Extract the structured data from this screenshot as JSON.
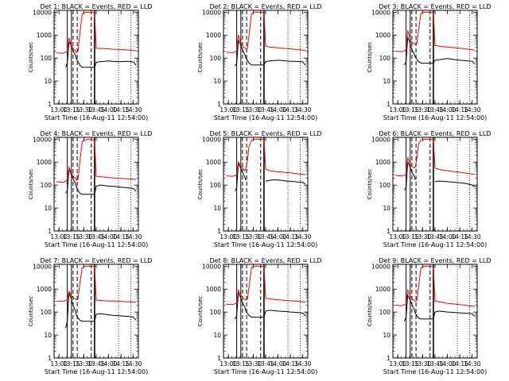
{
  "x_tick_labels": [
    "13:00",
    "13:15",
    "13:30",
    "13:45",
    "14:00",
    "14:15",
    "14:30"
  ],
  "xlabel": "Start Time (16-Aug-11 12:54:00)",
  "ylabel": "Counts/sec",
  "y_tick_labels": [
    "1",
    "10",
    "100",
    "1000",
    "10000"
  ],
  "colors": {
    "events": "#000000",
    "lld": "#ff0000",
    "axes": "#000000"
  },
  "chart_data": [
    {
      "type": "line",
      "title": "Det 1: BLACK = Events, RED = LLD",
      "x_range": [
        "12:54",
        "14:36"
      ],
      "y_range": [
        1,
        12000
      ],
      "y_scale": "log",
      "x": [
        "12:57",
        "13:05",
        "13:08",
        "13:10",
        "13:12",
        "13:14",
        "13:16",
        "13:18",
        "13:20",
        "13:21",
        "13:23",
        "13:25",
        "13:28",
        "13:30",
        "13:33",
        "13:36",
        "13:38",
        "13:40",
        "13:43",
        "13:45",
        "13:50",
        "13:55",
        "14:00",
        "14:05",
        "14:10",
        "14:15",
        "14:20",
        "14:25",
        "14:30",
        "14:33"
      ],
      "series": [
        {
          "name": "Events",
          "values": [
            null,
            null,
            40,
            60,
            500,
            400,
            250,
            180,
            130,
            90,
            70,
            50,
            40,
            40,
            40,
            40,
            40,
            40,
            40,
            65,
            70,
            72,
            75,
            72,
            70,
            70,
            72,
            70,
            68,
            50
          ]
        },
        {
          "name": "LLD",
          "values": [
            170,
            160,
            180,
            200,
            750,
            450,
            300,
            230,
            210,
            170,
            200,
            1000,
            8000,
            9500,
            9800,
            9900,
            9950,
            9800,
            9000,
            270,
            260,
            260,
            250,
            240,
            240,
            235,
            230,
            220,
            210,
            210
          ]
        }
      ]
    },
    {
      "type": "line",
      "title": "Det 2: BLACK = Events, RED = LLD",
      "x_range": [
        "12:54",
        "14:36"
      ],
      "y_range": [
        1,
        12000
      ],
      "y_scale": "log",
      "x": [
        "12:57",
        "13:05",
        "13:08",
        "13:10",
        "13:12",
        "13:14",
        "13:16",
        "13:18",
        "13:20",
        "13:21",
        "13:23",
        "13:25",
        "13:28",
        "13:30",
        "13:33",
        "13:36",
        "13:38",
        "13:40",
        "13:43",
        "13:45",
        "13:50",
        "13:55",
        "14:00",
        "14:05",
        "14:10",
        "14:15",
        "14:20",
        "14:25",
        "14:30",
        "14:33"
      ],
      "series": [
        {
          "name": "Events",
          "values": [
            null,
            null,
            45,
            60,
            600,
            450,
            280,
            190,
            140,
            100,
            80,
            60,
            50,
            50,
            50,
            50,
            50,
            50,
            50,
            70,
            75,
            78,
            80,
            78,
            75,
            72,
            72,
            70,
            68,
            50
          ]
        },
        {
          "name": "LLD",
          "values": [
            180,
            170,
            190,
            210,
            1000,
            600,
            380,
            300,
            280,
            250,
            260,
            1100,
            8500,
            9600,
            9900,
            9950,
            9950,
            9850,
            9200,
            320,
            300,
            290,
            280,
            270,
            260,
            250,
            240,
            230,
            220,
            215
          ]
        }
      ]
    },
    {
      "type": "line",
      "title": "Det 3: BLACK = Events, RED = LLD",
      "x_range": [
        "12:54",
        "14:36"
      ],
      "y_range": [
        1,
        12000
      ],
      "y_scale": "log",
      "x": [
        "12:57",
        "13:05",
        "13:08",
        "13:10",
        "13:12",
        "13:14",
        "13:16",
        "13:18",
        "13:20",
        "13:21",
        "13:23",
        "13:25",
        "13:28",
        "13:30",
        "13:33",
        "13:36",
        "13:38",
        "13:40",
        "13:43",
        "13:45",
        "13:50",
        "13:55",
        "14:00",
        "14:05",
        "14:10",
        "14:15",
        "14:20",
        "14:25",
        "14:30",
        "14:33"
      ],
      "series": [
        {
          "name": "Events",
          "values": [
            null,
            null,
            50,
            70,
            800,
            550,
            300,
            200,
            150,
            110,
            90,
            70,
            60,
            60,
            60,
            60,
            60,
            60,
            60,
            80,
            85,
            90,
            95,
            90,
            85,
            80,
            78,
            75,
            72,
            55
          ]
        },
        {
          "name": "LLD",
          "values": [
            200,
            190,
            210,
            230,
            1600,
            900,
            550,
            450,
            420,
            400,
            430,
            1500,
            9000,
            9700,
            9900,
            9950,
            9950,
            9900,
            9400,
            350,
            330,
            310,
            300,
            290,
            280,
            270,
            255,
            240,
            230,
            220
          ]
        }
      ]
    },
    {
      "type": "line",
      "title": "Det 4: BLACK = Events, RED = LLD",
      "x_range": [
        "12:54",
        "14:36"
      ],
      "y_range": [
        1,
        12000
      ],
      "y_scale": "log",
      "x": [
        "12:57",
        "13:05",
        "13:08",
        "13:10",
        "13:12",
        "13:14",
        "13:16",
        "13:18",
        "13:20",
        "13:21",
        "13:23",
        "13:25",
        "13:28",
        "13:30",
        "13:33",
        "13:36",
        "13:38",
        "13:40",
        "13:43",
        "13:45",
        "13:50",
        "13:55",
        "14:00",
        "14:05",
        "14:10",
        "14:15",
        "14:20",
        "14:25",
        "14:30",
        "14:33"
      ],
      "series": [
        {
          "name": "Events",
          "values": [
            null,
            null,
            45,
            55,
            450,
            350,
            220,
            160,
            120,
            80,
            60,
            45,
            40,
            40,
            40,
            40,
            40,
            40,
            40,
            90,
            100,
            95,
            90,
            88,
            85,
            80,
            78,
            75,
            70,
            55
          ]
        },
        {
          "name": "LLD",
          "values": [
            140,
            130,
            150,
            170,
            600,
            420,
            300,
            220,
            200,
            160,
            180,
            900,
            7500,
            9000,
            9500,
            9600,
            9700,
            9500,
            8800,
            240,
            230,
            220,
            210,
            205,
            200,
            195,
            190,
            185,
            180,
            175
          ]
        }
      ]
    },
    {
      "type": "line",
      "title": "Det 5: BLACK = Events, RED = LLD",
      "x_range": [
        "12:54",
        "14:36"
      ],
      "y_range": [
        1,
        12000
      ],
      "y_scale": "log",
      "x": [
        "12:57",
        "13:05",
        "13:08",
        "13:10",
        "13:12",
        "13:14",
        "13:16",
        "13:18",
        "13:20",
        "13:21",
        "13:23",
        "13:25",
        "13:28",
        "13:30",
        "13:33",
        "13:36",
        "13:38",
        "13:40",
        "13:43",
        "13:45",
        "13:50",
        "13:55",
        "14:00",
        "14:05",
        "14:10",
        "14:15",
        "14:20",
        "14:25",
        "14:30",
        "14:33"
      ],
      "series": [
        {
          "name": "Events",
          "values": [
            null,
            null,
            55,
            75,
            900,
            650,
            420,
            300,
            220,
            160,
            null,
            null,
            null,
            null,
            null,
            null,
            null,
            null,
            null,
            150,
            160,
            170,
            165,
            160,
            150,
            145,
            140,
            135,
            130,
            110
          ]
        },
        {
          "name": "LLD",
          "values": [
            250,
            240,
            260,
            280,
            1000,
            750,
            600,
            500,
            420,
            500,
            1200,
            5000,
            9000,
            9600,
            9800,
            9900,
            9900,
            9800,
            9200,
            500,
            420,
            400,
            380,
            370,
            350,
            340,
            320,
            300,
            290,
            280
          ]
        }
      ]
    },
    {
      "type": "line",
      "title": "Det 6: BLACK = Events, RED = LLD",
      "x_range": [
        "12:54",
        "14:36"
      ],
      "y_range": [
        1,
        12000
      ],
      "y_scale": "log",
      "x": [
        "12:57",
        "13:05",
        "13:08",
        "13:10",
        "13:12",
        "13:14",
        "13:16",
        "13:18",
        "13:20",
        "13:21",
        "13:23",
        "13:25",
        "13:28",
        "13:30",
        "13:33",
        "13:36",
        "13:38",
        "13:40",
        "13:43",
        "13:45",
        "13:50",
        "13:55",
        "14:00",
        "14:05",
        "14:10",
        "14:15",
        "14:20",
        "14:25",
        "14:30",
        "14:33"
      ],
      "series": [
        {
          "name": "Events",
          "values": [
            null,
            null,
            60,
            80,
            1000,
            700,
            450,
            320,
            240,
            170,
            null,
            null,
            null,
            null,
            null,
            null,
            null,
            null,
            null,
            140,
            150,
            145,
            140,
            135,
            130,
            125,
            120,
            110,
            100,
            80
          ]
        },
        {
          "name": "LLD",
          "values": [
            260,
            250,
            270,
            300,
            1600,
            1000,
            700,
            600,
            550,
            600,
            1500,
            6000,
            9200,
            9700,
            9850,
            9900,
            9900,
            9800,
            9300,
            550,
            480,
            440,
            420,
            400,
            380,
            360,
            340,
            320,
            300,
            290
          ]
        }
      ]
    },
    {
      "type": "line",
      "title": "Det 7: BLACK = Events, RED = LLD",
      "x_range": [
        "12:54",
        "14:36"
      ],
      "y_range": [
        1,
        12000
      ],
      "y_scale": "log",
      "x": [
        "12:57",
        "13:05",
        "13:08",
        "13:10",
        "13:12",
        "13:14",
        "13:16",
        "13:18",
        "13:20",
        "13:21",
        "13:23",
        "13:25",
        "13:28",
        "13:30",
        "13:33",
        "13:36",
        "13:38",
        "13:40",
        "13:43",
        "13:45",
        "13:50",
        "13:55",
        "14:00",
        "14:05",
        "14:10",
        "14:15",
        "14:20",
        "14:25",
        "14:30",
        "14:33"
      ],
      "series": [
        {
          "name": "Events",
          "values": [
            null,
            null,
            20,
            40,
            700,
            450,
            250,
            160,
            110,
            70,
            55,
            45,
            40,
            40,
            40,
            40,
            40,
            40,
            40,
            80,
            85,
            80,
            75,
            72,
            70,
            68,
            66,
            64,
            60,
            45
          ]
        },
        {
          "name": "LLD",
          "values": [
            300,
            290,
            320,
            340,
            800,
            600,
            450,
            400,
            380,
            350,
            380,
            1500,
            8500,
            9600,
            9900,
            9950,
            9950,
            9850,
            9300,
            330,
            320,
            310,
            300,
            300,
            295,
            290,
            285,
            280,
            275,
            270
          ]
        }
      ]
    },
    {
      "type": "line",
      "title": "Det 8: BLACK = Events, RED = LLD",
      "x_range": [
        "12:54",
        "14:36"
      ],
      "y_range": [
        1,
        12000
      ],
      "y_scale": "log",
      "x": [
        "12:57",
        "13:05",
        "13:08",
        "13:10",
        "13:12",
        "13:14",
        "13:16",
        "13:18",
        "13:20",
        "13:21",
        "13:23",
        "13:25",
        "13:28",
        "13:30",
        "13:33",
        "13:36",
        "13:38",
        "13:40",
        "13:43",
        "13:45",
        "13:50",
        "13:55",
        "14:00",
        "14:05",
        "14:10",
        "14:15",
        "14:20",
        "14:25",
        "14:30",
        "14:33"
      ],
      "series": [
        {
          "name": "Events",
          "values": [
            null,
            null,
            50,
            70,
            700,
            500,
            320,
            220,
            160,
            110,
            90,
            70,
            60,
            60,
            60,
            60,
            60,
            60,
            60,
            110,
            120,
            115,
            110,
            108,
            105,
            100,
            98,
            95,
            90,
            70
          ]
        },
        {
          "name": "LLD",
          "values": [
            220,
            210,
            230,
            250,
            900,
            650,
            480,
            400,
            360,
            330,
            360,
            1300,
            8800,
            9700,
            9900,
            9950,
            9950,
            9850,
            9300,
            400,
            380,
            360,
            340,
            330,
            320,
            310,
            300,
            290,
            280,
            270
          ]
        }
      ]
    },
    {
      "type": "line",
      "title": "Det 9: BLACK = Events, RED = LLD",
      "x_range": [
        "12:54",
        "14:36"
      ],
      "y_range": [
        1,
        12000
      ],
      "y_scale": "log",
      "x": [
        "12:57",
        "13:05",
        "13:08",
        "13:10",
        "13:12",
        "13:14",
        "13:16",
        "13:18",
        "13:20",
        "13:21",
        "13:23",
        "13:25",
        "13:28",
        "13:30",
        "13:33",
        "13:36",
        "13:38",
        "13:40",
        "13:43",
        "13:45",
        "13:50",
        "13:55",
        "14:00",
        "14:05",
        "14:10",
        "14:15",
        "14:20",
        "14:25",
        "14:30",
        "14:33"
      ],
      "series": [
        {
          "name": "Events",
          "values": [
            null,
            null,
            40,
            60,
            550,
            400,
            260,
            180,
            130,
            90,
            70,
            55,
            50,
            50,
            50,
            50,
            50,
            50,
            50,
            100,
            110,
            105,
            100,
            98,
            95,
            92,
            90,
            88,
            85,
            65
          ]
        },
        {
          "name": "LLD",
          "values": [
            200,
            190,
            210,
            230,
            900,
            620,
            440,
            360,
            320,
            290,
            320,
            1200,
            8600,
            9600,
            9850,
            9900,
            9900,
            9800,
            9200,
            300,
            280,
            260,
            240,
            230,
            220,
            210,
            200,
            190,
            180,
            175
          ]
        }
      ]
    }
  ]
}
